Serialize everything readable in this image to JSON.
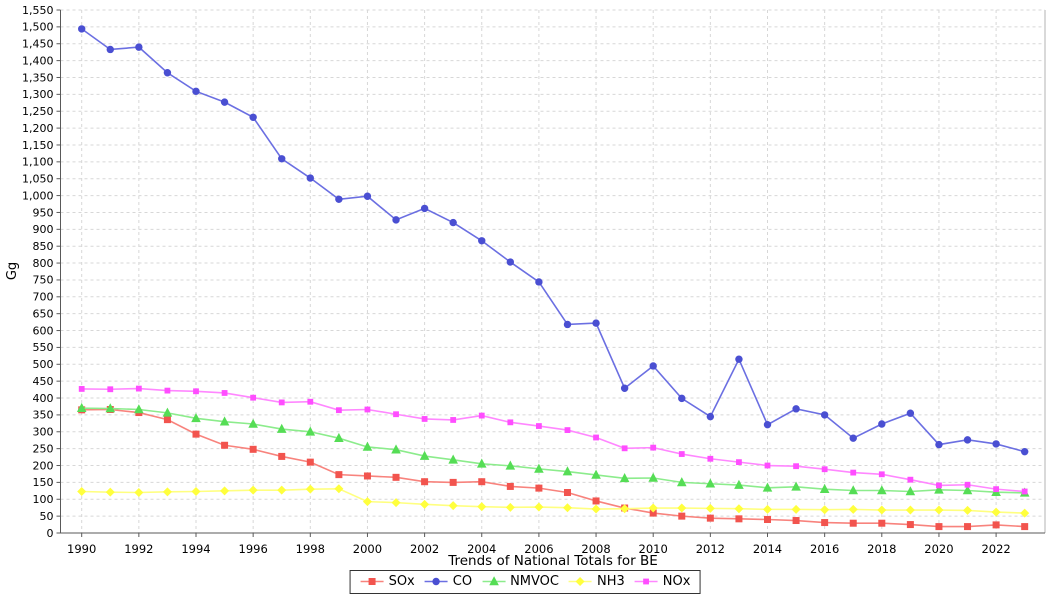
{
  "chart_data": {
    "type": "line",
    "title": "Trends of National Totals for BE",
    "ylabel": "Gg",
    "ylim": [
      0,
      1550
    ],
    "y_tick_step": 50,
    "grid": "dashed light-gray, horizontal every 50 Gg, vertical every 2 years",
    "legend_position": "bottom center",
    "x": [
      1990,
      1991,
      1992,
      1993,
      1994,
      1995,
      1996,
      1997,
      1998,
      1999,
      2000,
      2001,
      2002,
      2003,
      2004,
      2005,
      2006,
      2007,
      2008,
      2009,
      2010,
      2011,
      2012,
      2013,
      2014,
      2015,
      2016,
      2017,
      2018,
      2019,
      2020,
      2021,
      2022,
      2023
    ],
    "x_tick_labels": [
      "1990",
      "1992",
      "1994",
      "1996",
      "1998",
      "2000",
      "2002",
      "2004",
      "2006",
      "2008",
      "2010",
      "2012",
      "2014",
      "2016",
      "2018",
      "2020",
      "2022"
    ],
    "series": [
      {
        "name": "SOx",
        "marker": "square",
        "marker_size": 7,
        "color": "#f2544e",
        "line_color": "#f8837d",
        "values": [
          365,
          366,
          357,
          336,
          293,
          260,
          248,
          227,
          210,
          173,
          169,
          165,
          152,
          150,
          152,
          138,
          133,
          120,
          95,
          74,
          59,
          50,
          44,
          42,
          40,
          37,
          31,
          29,
          29,
          25,
          19,
          19,
          24,
          19
        ]
      },
      {
        "name": "CO",
        "marker": "circle",
        "marker_size": 7.4,
        "color": "#4a4fd2",
        "line_color": "#6b6fe2",
        "values": [
          1494,
          1433,
          1440,
          1364,
          1309,
          1277,
          1232,
          1109,
          1052,
          989,
          998,
          928,
          962,
          920,
          866,
          803,
          744,
          618,
          622,
          429,
          495,
          399,
          345,
          515,
          321,
          368,
          350,
          281,
          323,
          355,
          262,
          276,
          264,
          241
        ]
      },
      {
        "name": "NMVOC",
        "marker": "triangle",
        "marker_size": 8.6,
        "color": "#55dd55",
        "line_color": "#8cec8c",
        "values": [
          370,
          369,
          366,
          356,
          340,
          330,
          323,
          308,
          300,
          281,
          255,
          247,
          228,
          217,
          205,
          199,
          190,
          182,
          172,
          162,
          163,
          150,
          146,
          142,
          134,
          137,
          130,
          126,
          126,
          123,
          128,
          126,
          121,
          119
        ]
      },
      {
        "name": "NH3",
        "marker": "diamond",
        "marker_size": 8,
        "color": "#ffff3d",
        "line_color": "#ffff80",
        "values": [
          123,
          121,
          120,
          122,
          123,
          125,
          127,
          127,
          130,
          131,
          93,
          90,
          85,
          81,
          78,
          76,
          77,
          75,
          71,
          72,
          74,
          74,
          73,
          72,
          70,
          70,
          69,
          70,
          68,
          68,
          68,
          67,
          62,
          59
        ]
      },
      {
        "name": "NOx",
        "marker": "square",
        "marker_size": 5.8,
        "color": "#ff4dff",
        "line_color": "#ff87ff",
        "values": [
          427,
          426,
          428,
          422,
          420,
          415,
          401,
          387,
          389,
          364,
          366,
          352,
          338,
          335,
          348,
          328,
          317,
          305,
          283,
          251,
          253,
          234,
          220,
          210,
          200,
          198,
          189,
          179,
          174,
          158,
          141,
          143,
          130,
          123
        ]
      }
    ]
  }
}
